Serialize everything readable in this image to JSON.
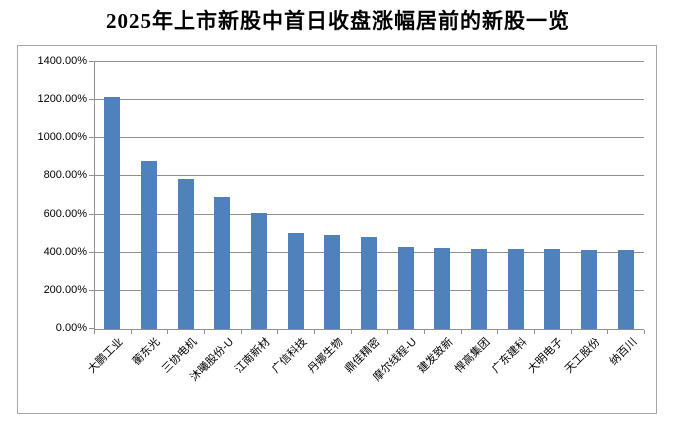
{
  "title": "2025年上市新股中首日收盘涨幅居前的新股一览",
  "chart_data": {
    "type": "bar",
    "title": "2025年上市新股中首日收盘涨幅居前的新股一览",
    "categories": [
      "大鹏工业",
      "蘅东光",
      "三协电机",
      "沐曦股份-U",
      "江南新材",
      "广信科技",
      "丹娜生物",
      "鼎佳精密",
      "摩尔线程-U",
      "建发致新",
      "悍高集团",
      "广东建科",
      "大明电子",
      "天工股份",
      "纳百川"
    ],
    "values": [
      1215,
      882,
      789,
      692,
      608,
      502,
      493,
      481,
      428,
      423,
      422,
      422,
      417,
      413,
      412
    ],
    "unit": "%",
    "xlabel": "",
    "ylabel": "",
    "ylim": [
      0,
      1400
    ],
    "ytick_step": 200,
    "ytick_labels": [
      "0.00%",
      "200.00%",
      "400.00%",
      "600.00%",
      "800.00%",
      "1000.00%",
      "1200.00%",
      "1400.00%"
    ],
    "grid": "horizontal-only",
    "legend": "none",
    "colors": {
      "bar": "#4f81bd",
      "gridline": "#909090",
      "axis": "#909090",
      "frame_border": "#a6a6a6",
      "text": "#000000",
      "background": "#ffffff"
    }
  }
}
